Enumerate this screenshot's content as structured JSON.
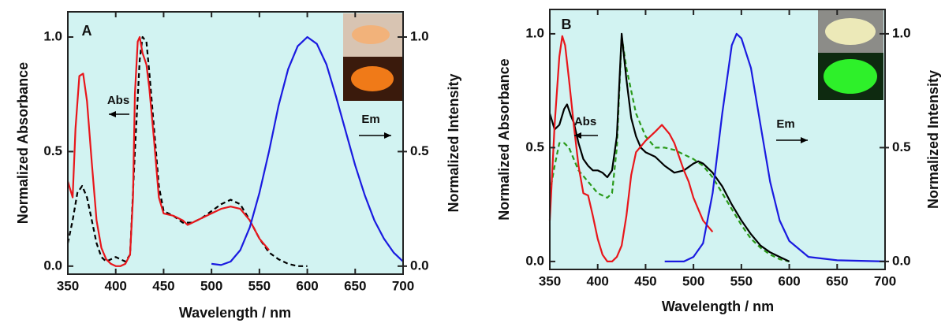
{
  "chart_data": [
    {
      "type": "line",
      "panel_label": "A",
      "annotations": [
        "Abs",
        "Em"
      ],
      "xlabel": "Wavelength / nm",
      "ylabel": "Normalized Absorbance",
      "y2label": "Normalized Intensity",
      "xlim": [
        350,
        700
      ],
      "xticks": [
        350,
        400,
        450,
        500,
        550,
        600,
        650,
        700
      ],
      "ylim": [
        -0.035,
        1.11
      ],
      "yticks": [
        {
          "value": 0,
          "label": "0.0"
        },
        {
          "value": 0.5,
          "label": "0.5"
        },
        {
          "value": 1,
          "label": "1.0"
        }
      ],
      "y2lim": [
        -0.035,
        1.11
      ],
      "y2ticks": [
        {
          "value": 0,
          "label": "0.0"
        },
        {
          "value": 0.5,
          "label": "0.5"
        },
        {
          "value": 1,
          "label": "1.0"
        }
      ],
      "background": "#d2f3f2",
      "series": [
        {
          "color": "#000000",
          "dashed": true,
          "x": [
            350,
            355,
            360,
            365,
            370,
            375,
            380,
            385,
            390,
            395,
            400,
            405,
            410,
            415,
            420,
            425,
            428,
            432,
            435,
            440,
            445,
            450,
            460,
            470,
            480,
            490,
            500,
            510,
            520,
            530,
            540,
            550,
            560,
            570,
            580,
            590,
            600
          ],
          "values": [
            0.1,
            0.2,
            0.32,
            0.35,
            0.3,
            0.2,
            0.1,
            0.04,
            0.02,
            0.03,
            0.04,
            0.03,
            0.02,
            0.05,
            0.5,
            0.9,
            1.0,
            0.98,
            0.85,
            0.6,
            0.35,
            0.24,
            0.22,
            0.19,
            0.19,
            0.21,
            0.24,
            0.27,
            0.29,
            0.27,
            0.2,
            0.12,
            0.06,
            0.03,
            0.01,
            0,
            0
          ]
        },
        {
          "color": "#e8161b",
          "x": [
            350,
            355,
            358,
            362,
            366,
            370,
            375,
            380,
            385,
            390,
            395,
            400,
            405,
            410,
            415,
            418,
            420,
            423,
            425,
            428,
            432,
            435,
            440,
            445,
            450,
            460,
            470,
            475,
            480,
            490,
            500,
            510,
            520,
            530,
            540,
            550,
            560
          ],
          "values": [
            0.37,
            0.3,
            0.6,
            0.83,
            0.84,
            0.72,
            0.45,
            0.2,
            0.08,
            0.03,
            0.01,
            0,
            0,
            0.01,
            0.05,
            0.3,
            0.75,
            0.98,
            1.0,
            0.93,
            0.88,
            0.78,
            0.55,
            0.3,
            0.23,
            0.22,
            0.2,
            0.18,
            0.19,
            0.21,
            0.23,
            0.25,
            0.26,
            0.25,
            0.2,
            0.12,
            0.07
          ]
        },
        {
          "color": "#1a1ae0",
          "axis": "y2",
          "x": [
            500,
            510,
            520,
            530,
            540,
            550,
            560,
            570,
            580,
            590,
            600,
            610,
            620,
            630,
            640,
            650,
            660,
            670,
            680,
            690,
            700
          ],
          "values": [
            0.01,
            0.005,
            0.02,
            0.07,
            0.17,
            0.32,
            0.5,
            0.7,
            0.86,
            0.96,
            1.0,
            0.97,
            0.88,
            0.74,
            0.59,
            0.44,
            0.31,
            0.2,
            0.12,
            0.06,
            0.02
          ]
        }
      ]
    },
    {
      "type": "line",
      "panel_label": "B",
      "annotations": [
        "Abs",
        "Em"
      ],
      "xlabel": "Wavelength / nm",
      "ylabel": "Normalized Absorbance",
      "y2label": "Normalized Intensity",
      "xlim": [
        350,
        700
      ],
      "xticks": [
        350,
        400,
        450,
        500,
        550,
        600,
        650,
        700
      ],
      "ylim": [
        -0.035,
        1.107
      ],
      "yticks": [
        {
          "value": 0,
          "label": "0.0"
        },
        {
          "value": 0.5,
          "label": "0.5"
        },
        {
          "value": 1,
          "label": "1.0"
        }
      ],
      "y2lim": [
        -0.035,
        1.107
      ],
      "y2ticks": [
        {
          "value": 0,
          "label": "0.0"
        },
        {
          "value": 0.5,
          "label": "0.5"
        },
        {
          "value": 1,
          "label": "1.0"
        }
      ],
      "background": "#d2f3f2",
      "series": [
        {
          "color": "#2a9a1a",
          "dashed": true,
          "x": [
            350,
            355,
            360,
            365,
            370,
            375,
            380,
            390,
            400,
            410,
            415,
            420,
            425,
            430,
            435,
            440,
            450,
            460,
            470,
            480,
            490,
            500,
            510,
            520,
            530,
            540,
            550,
            560,
            570,
            580,
            590,
            600
          ],
          "values": [
            0.3,
            0.42,
            0.52,
            0.52,
            0.5,
            0.45,
            0.4,
            0.35,
            0.3,
            0.28,
            0.3,
            0.5,
            0.99,
            0.85,
            0.75,
            0.65,
            0.55,
            0.5,
            0.5,
            0.49,
            0.47,
            0.45,
            0.42,
            0.37,
            0.3,
            0.23,
            0.16,
            0.1,
            0.06,
            0.03,
            0.01,
            0
          ]
        },
        {
          "color": "#000000",
          "x": [
            350,
            355,
            360,
            365,
            368,
            372,
            375,
            380,
            385,
            390,
            395,
            400,
            405,
            410,
            415,
            420,
            425,
            430,
            435,
            440,
            445,
            450,
            460,
            470,
            480,
            490,
            500,
            505,
            510,
            520,
            530,
            540,
            550,
            560,
            570,
            580,
            590,
            600
          ],
          "values": [
            0.65,
            0.58,
            0.6,
            0.67,
            0.69,
            0.64,
            0.61,
            0.52,
            0.45,
            0.42,
            0.4,
            0.4,
            0.39,
            0.37,
            0.4,
            0.55,
            1.0,
            0.8,
            0.63,
            0.55,
            0.5,
            0.48,
            0.46,
            0.42,
            0.39,
            0.4,
            0.43,
            0.44,
            0.43,
            0.39,
            0.33,
            0.25,
            0.18,
            0.12,
            0.07,
            0.04,
            0.02,
            0
          ]
        },
        {
          "color": "#e8161b",
          "x": [
            350,
            355,
            360,
            363,
            366,
            370,
            375,
            380,
            385,
            390,
            395,
            400,
            405,
            410,
            415,
            420,
            425,
            430,
            435,
            440,
            450,
            460,
            467,
            475,
            480,
            490,
            495,
            500,
            510,
            520
          ],
          "values": [
            0.18,
            0.6,
            0.9,
            0.99,
            0.95,
            0.8,
            0.6,
            0.42,
            0.3,
            0.29,
            0.2,
            0.1,
            0.03,
            0,
            0,
            0.02,
            0.07,
            0.2,
            0.38,
            0.48,
            0.53,
            0.57,
            0.6,
            0.56,
            0.52,
            0.4,
            0.35,
            0.28,
            0.18,
            0.13
          ]
        },
        {
          "color": "#1a1ae0",
          "axis": "y2",
          "x": [
            470,
            490,
            500,
            510,
            520,
            530,
            540,
            545,
            550,
            560,
            570,
            580,
            590,
            600,
            620,
            650,
            700
          ],
          "values": [
            0,
            0,
            0.02,
            0.08,
            0.3,
            0.65,
            0.95,
            1.0,
            0.98,
            0.85,
            0.6,
            0.35,
            0.18,
            0.09,
            0.02,
            0.005,
            0
          ]
        }
      ]
    }
  ]
}
